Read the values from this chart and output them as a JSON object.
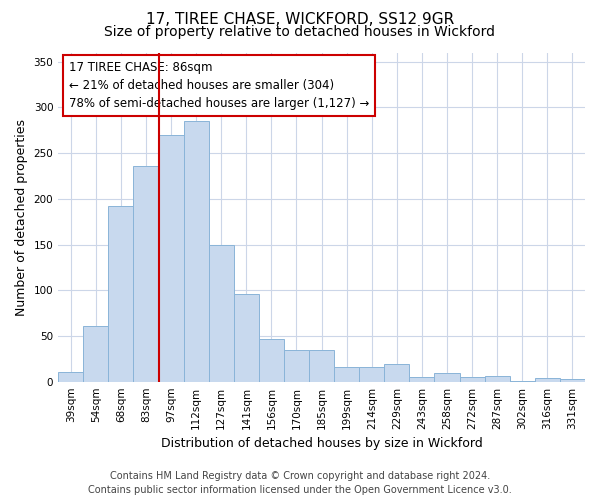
{
  "title1": "17, TIREE CHASE, WICKFORD, SS12 9GR",
  "title2": "Size of property relative to detached houses in Wickford",
  "xlabel": "Distribution of detached houses by size in Wickford",
  "ylabel": "Number of detached properties",
  "categories": [
    "39sqm",
    "54sqm",
    "68sqm",
    "83sqm",
    "97sqm",
    "112sqm",
    "127sqm",
    "141sqm",
    "156sqm",
    "170sqm",
    "185sqm",
    "199sqm",
    "214sqm",
    "229sqm",
    "243sqm",
    "258sqm",
    "272sqm",
    "287sqm",
    "302sqm",
    "316sqm",
    "331sqm"
  ],
  "values": [
    11,
    61,
    192,
    236,
    270,
    285,
    149,
    96,
    47,
    35,
    35,
    16,
    16,
    19,
    5,
    9,
    5,
    6,
    1,
    4,
    3
  ],
  "bar_color": "#c8d9ee",
  "bar_edge_color": "#8ab4d8",
  "vline_x_index": 3,
  "vline_color": "#cc0000",
  "annotation_line1": "17 TIREE CHASE: 86sqm",
  "annotation_line2": "← 21% of detached houses are smaller (304)",
  "annotation_line3": "78% of semi-detached houses are larger (1,127) →",
  "annotation_box_color": "#ffffff",
  "annotation_box_edge_color": "#cc0000",
  "ylim": [
    0,
    360
  ],
  "yticks": [
    0,
    50,
    100,
    150,
    200,
    250,
    300,
    350
  ],
  "background_color": "#ffffff",
  "grid_color": "#ccd6e8",
  "footer1": "Contains HM Land Registry data © Crown copyright and database right 2024.",
  "footer2": "Contains public sector information licensed under the Open Government Licence v3.0.",
  "title_fontsize": 11,
  "subtitle_fontsize": 10,
  "axis_label_fontsize": 9,
  "tick_fontsize": 7.5,
  "annotation_fontsize": 8.5,
  "footer_fontsize": 7
}
